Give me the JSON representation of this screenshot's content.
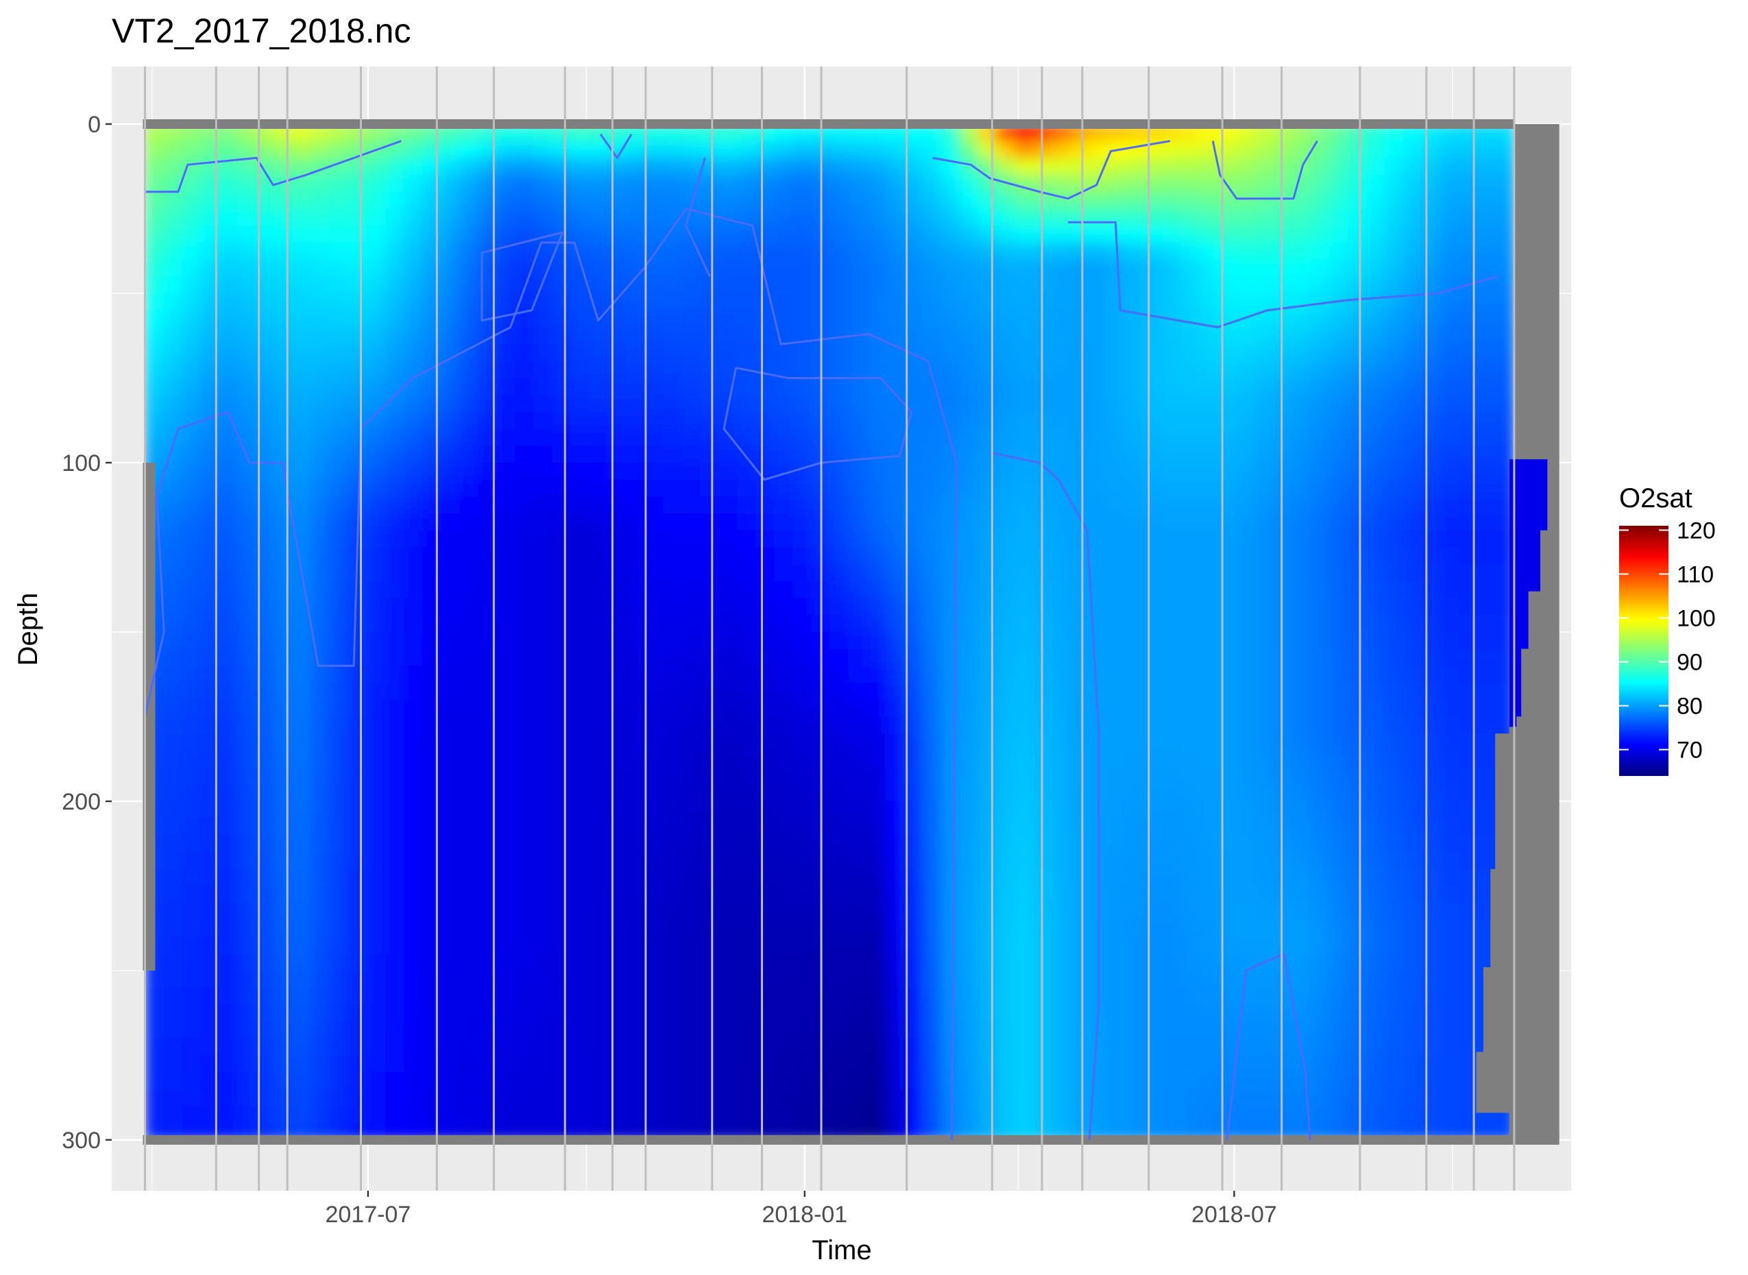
{
  "chart_data": {
    "type": "heatmap",
    "title": "VT2_2017_2018.nc",
    "xlabel": "Time",
    "ylabel": "Depth",
    "x_ticks": [
      "2017-07",
      "2018-01",
      "2018-07"
    ],
    "y_ticks": [
      0,
      100,
      200,
      300
    ],
    "y_reversed": true,
    "xlim": [
      "2017-03-15",
      "2018-11-20"
    ],
    "ylim": [
      315,
      -17
    ],
    "grid": true,
    "legend": {
      "title": "O2sat",
      "position": "right",
      "ticks": [
        70,
        80,
        90,
        100,
        110,
        120
      ],
      "range": [
        64,
        121
      ],
      "colormap": [
        "#00007f",
        "#0000ff",
        "#007fff",
        "#00ffff",
        "#7fff7f",
        "#ffff00",
        "#ff7f00",
        "#ff0000",
        "#7f0000"
      ]
    },
    "na_color": "#7f7f7f",
    "background": "#ebebeb",
    "contour_color": "#4b6bff",
    "profile_dates": [
      "2017-03-29",
      "2017-04-28",
      "2017-05-16",
      "2017-05-28",
      "2017-06-28",
      "2017-07-30",
      "2017-08-23",
      "2017-09-22",
      "2017-10-12",
      "2017-10-26",
      "2017-11-23",
      "2017-12-14",
      "2018-01-08",
      "2018-02-13",
      "2018-03-21",
      "2018-04-11",
      "2018-04-28",
      "2018-05-26",
      "2018-06-26",
      "2018-07-21",
      "2018-08-23",
      "2018-09-20",
      "2018-10-10",
      "2018-10-27"
    ],
    "time_samples": [
      "2017-03-29",
      "2017-05-01",
      "2017-06-01",
      "2017-07-01",
      "2017-08-01",
      "2017-09-01",
      "2017-10-01",
      "2017-11-01",
      "2017-12-01",
      "2018-01-01",
      "2018-02-01",
      "2018-03-01",
      "2018-04-01",
      "2018-05-01",
      "2018-06-01",
      "2018-07-01",
      "2018-08-01",
      "2018-09-01",
      "2018-10-01"
    ],
    "depth_samples": [
      0,
      15,
      40,
      80,
      120,
      180,
      240,
      300
    ],
    "o2sat_values": [
      [
        96,
        93,
        100,
        95,
        91,
        88,
        90,
        88,
        89,
        86,
        86,
        86,
        118,
        105,
        103,
        100,
        94,
        87,
        84
      ],
      [
        92,
        88,
        90,
        88,
        83,
        78,
        80,
        79,
        80,
        78,
        80,
        84,
        94,
        96,
        94,
        94,
        91,
        85,
        81
      ],
      [
        88,
        83,
        84,
        85,
        80,
        74,
        76,
        77,
        76,
        76,
        78,
        80,
        81,
        80,
        82,
        86,
        86,
        83,
        79
      ],
      [
        83,
        79,
        81,
        80,
        77,
        72,
        74,
        74,
        75,
        76,
        78,
        78,
        80,
        80,
        82,
        82,
        80,
        78,
        76
      ],
      [
        78,
        76,
        79,
        74,
        71,
        70,
        69,
        71,
        71,
        73,
        77,
        79,
        81,
        80,
        80,
        80,
        78,
        75,
        73
      ],
      [
        75,
        74,
        78,
        73,
        70,
        70,
        69,
        69,
        68,
        69,
        70,
        79,
        82,
        80,
        80,
        80,
        78,
        76,
        74
      ],
      [
        74,
        73,
        77,
        73,
        70,
        70,
        69,
        68,
        67,
        67,
        67,
        79,
        83,
        80,
        79,
        80,
        80,
        77,
        75
      ],
      [
        73,
        72,
        75,
        72,
        70,
        69,
        69,
        68,
        67,
        66,
        65,
        78,
        83,
        80,
        79,
        78,
        78,
        76,
        75
      ]
    ]
  }
}
